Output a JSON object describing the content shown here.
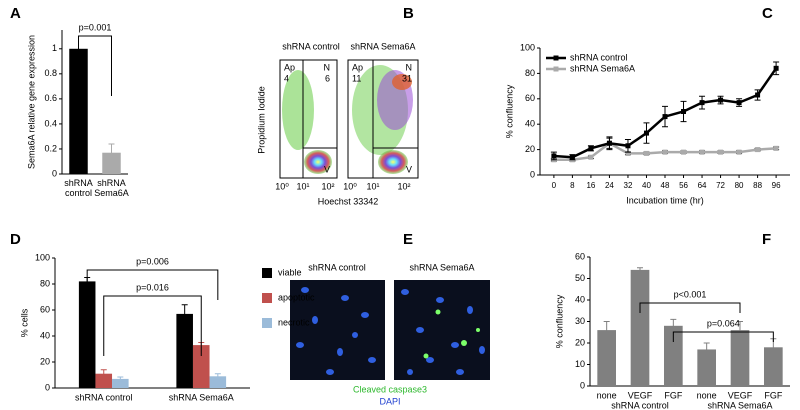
{
  "chart_data": [
    {
      "panel": "A",
      "type": "bar",
      "ylabel": "Sema6A relative gene expression",
      "categories": [
        "shRNA control",
        "shRNA Sema6A"
      ],
      "values": [
        1.0,
        0.17
      ],
      "errors": [
        0.0,
        0.07
      ],
      "colors": [
        "#000000",
        "#aaaaaa"
      ],
      "ylim": [
        0,
        1.15
      ],
      "yticks": [
        0,
        0.2,
        0.4,
        0.6,
        0.8,
        1
      ],
      "annotations": [
        "p=0.001"
      ]
    },
    {
      "panel": "C",
      "type": "line",
      "xlabel": "Incubation time (hr)",
      "ylabel": "% confluency",
      "x": [
        0,
        8,
        16,
        24,
        32,
        40,
        48,
        56,
        64,
        72,
        80,
        88,
        96
      ],
      "series": [
        {
          "name": "shRNA control",
          "color": "#000000",
          "values": [
            15,
            14,
            21,
            25,
            23,
            33,
            46,
            50,
            57,
            59,
            57,
            63,
            84
          ],
          "errors": [
            3,
            2,
            2,
            5,
            5,
            8,
            8,
            8,
            5,
            3,
            3,
            4,
            5
          ]
        },
        {
          "name": "shRNA Sema6A",
          "color": "#aaaaaa",
          "values": [
            12,
            12,
            14,
            25,
            17,
            17,
            18,
            18,
            18,
            18,
            18,
            20,
            21
          ],
          "errors": [
            1,
            1,
            1,
            4,
            1,
            1,
            1,
            1,
            1,
            1,
            1,
            1,
            1
          ]
        }
      ],
      "xlim": [
        -6,
        102
      ],
      "xticks": [
        0,
        8,
        16,
        24,
        32,
        40,
        48,
        56,
        64,
        72,
        80,
        88,
        96
      ],
      "ylim": [
        0,
        100
      ],
      "yticks": [
        0,
        20,
        40,
        60,
        80,
        100
      ],
      "legend": "top-left"
    },
    {
      "panel": "D",
      "type": "grouped_bar",
      "ylabel": "% cells",
      "categories": [
        "shRNA control",
        "shRNA Sema6A"
      ],
      "series": [
        {
          "name": "viable",
          "color": "#000000",
          "values": [
            82,
            57
          ],
          "errors": [
            3,
            7
          ]
        },
        {
          "name": "apoptotic",
          "color": "#c0504d",
          "values": [
            11,
            33
          ],
          "errors": [
            3,
            2
          ]
        },
        {
          "name": "necrotic",
          "color": "#9bbbd9",
          "values": [
            7,
            9
          ],
          "errors": [
            1.5,
            2
          ]
        }
      ],
      "ylim": [
        0,
        100
      ],
      "yticks": [
        0,
        20,
        40,
        60,
        80,
        100
      ],
      "legend": "right",
      "annotations": [
        "p=0.006",
        "p=0.016"
      ]
    },
    {
      "panel": "F",
      "type": "bar",
      "ylabel": "% confluency",
      "categories": [
        "none",
        "VEGF",
        "FGF",
        "none",
        "VEGF",
        "FGF"
      ],
      "groups": [
        "shRNA control",
        "shRNA Sema6A"
      ],
      "values": [
        26,
        54,
        28,
        17,
        26,
        18
      ],
      "errors": [
        4,
        1,
        3,
        3,
        4,
        4
      ],
      "color": "#808080",
      "ylim": [
        0,
        60
      ],
      "yticks": [
        0,
        10,
        20,
        30,
        40,
        50,
        60
      ],
      "annotations": [
        "p<0.001",
        "p=0.064"
      ]
    }
  ],
  "flow": {
    "panel": "B",
    "ylabel": "Propidium Iodide",
    "xlabel": "Hoechst 33342",
    "tick_labels": [
      "10⁰",
      "10¹",
      "10²"
    ],
    "plots": [
      {
        "title": "shRNA control",
        "ap_label": "Ap",
        "ap": "4",
        "n_label": "N",
        "n": "6",
        "v_label": "V"
      },
      {
        "title": "shRNA Sema6A",
        "ap_label": "Ap",
        "ap": "11",
        "n_label": "N",
        "n": "31",
        "v_label": "V"
      }
    ]
  },
  "images": {
    "panel": "E",
    "titles": [
      "shRNA control",
      "shRNA Sema6A"
    ],
    "legend": [
      "Cleaved caspase3",
      "DAPI"
    ]
  }
}
